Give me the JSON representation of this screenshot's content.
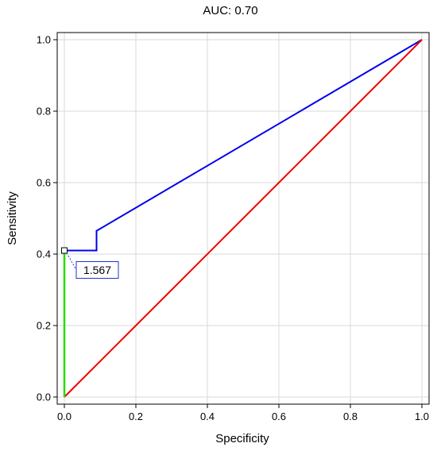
{
  "chart_data": {
    "type": "line",
    "title": "AUC: 0.70",
    "xlabel": "Specificity",
    "ylabel": "Sensitivity",
    "xlim": [
      -0.02,
      1.02
    ],
    "ylim": [
      -0.02,
      1.02
    ],
    "xticks": [
      "0.0",
      "0.2",
      "0.4",
      "0.6",
      "0.8",
      "1.0"
    ],
    "yticks": [
      "0.0",
      "0.2",
      "0.4",
      "0.6",
      "0.8",
      "1.0"
    ],
    "grid": true,
    "series": [
      {
        "color": "#0000ee",
        "x": [
          0.0,
          0.0,
          0.09,
          0.09,
          1.0
        ],
        "y": [
          0.0,
          0.41,
          0.41,
          0.465,
          1.0
        ]
      },
      {
        "color": "#ee0000",
        "x": [
          0.0,
          1.0
        ],
        "y": [
          0.0,
          1.0
        ]
      },
      {
        "color": "#22dd00",
        "x": [
          0.0,
          0.0
        ],
        "y": [
          0.0,
          0.41
        ]
      }
    ],
    "cutoff": {
      "x": 0.0,
      "y": 0.41,
      "label": "1.567"
    }
  }
}
